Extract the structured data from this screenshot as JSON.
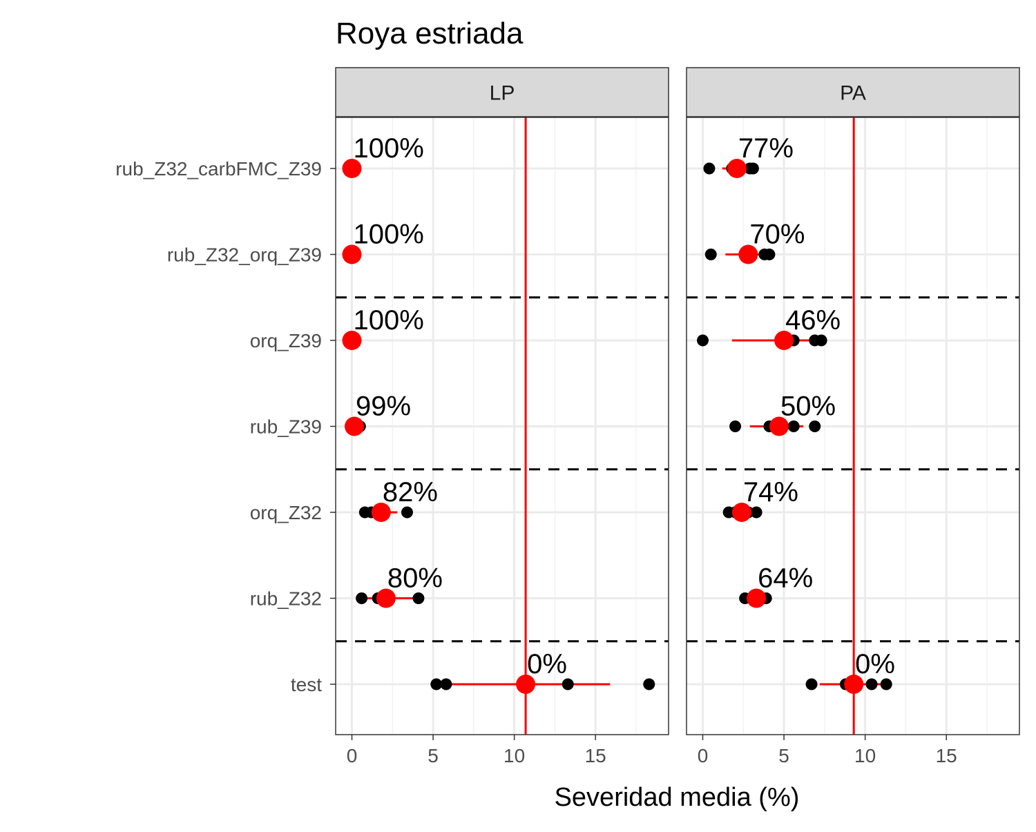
{
  "chart_data": {
    "type": "scatter",
    "title": "Roya estriada",
    "xlabel": "Severidad media (%)",
    "ylabel": "",
    "xlim": [
      -1,
      19.5
    ],
    "xticks": [
      0,
      5,
      10,
      15
    ],
    "grid": true,
    "legend": "none",
    "categories": [
      "rub_Z32_carbFMC_Z39",
      "rub_Z32_orq_Z39",
      "orq_Z39",
      "rub_Z39",
      "orq_Z32",
      "rub_Z32",
      "test"
    ],
    "group_separators_after": [
      "rub_Z32_orq_Z39",
      "rub_Z39",
      "rub_Z32"
    ],
    "colors": {
      "mean": "#ff0000",
      "points": "#000000",
      "reference_line": "#ff0000",
      "separator": "#000000"
    },
    "panels": [
      {
        "name": "LP",
        "reference": 10.7,
        "rows": [
          {
            "category": "rub_Z32_carbFMC_Z39",
            "label": "100%",
            "mean": 0.0,
            "ci": [
              0.0,
              0.0
            ],
            "points": [
              0.0,
              0.0,
              0.0,
              0.0
            ]
          },
          {
            "category": "rub_Z32_orq_Z39",
            "label": "100%",
            "mean": 0.0,
            "ci": [
              0.0,
              0.0
            ],
            "points": [
              0.0,
              0.0,
              0.0,
              0.0
            ]
          },
          {
            "category": "orq_Z39",
            "label": "100%",
            "mean": 0.0,
            "ci": [
              0.0,
              0.0
            ],
            "points": [
              0.0,
              0.0,
              0.0,
              0.0
            ]
          },
          {
            "category": "rub_Z39",
            "label": "99%",
            "mean": 0.15,
            "ci": [
              0.0,
              0.4
            ],
            "points": [
              0.0,
              0.0,
              0.1,
              0.5
            ]
          },
          {
            "category": "orq_Z32",
            "label": "82%",
            "mean": 1.8,
            "ci": [
              1.0,
              2.8
            ],
            "points": [
              0.8,
              1.2,
              1.8,
              3.4
            ]
          },
          {
            "category": "rub_Z32",
            "label": "80%",
            "mean": 2.1,
            "ci": [
              0.6,
              4.2
            ],
            "points": [
              0.6,
              1.6,
              2.2,
              4.1
            ]
          },
          {
            "category": "test",
            "label": "0%",
            "mean": 10.7,
            "ci": [
              5.5,
              15.9
            ],
            "points": [
              5.2,
              5.8,
              13.3,
              18.3
            ]
          }
        ]
      },
      {
        "name": "PA",
        "reference": 9.3,
        "rows": [
          {
            "category": "rub_Z32_carbFMC_Z39",
            "label": "77%",
            "mean": 2.1,
            "ci": [
              1.2,
              3.1
            ],
            "points": [
              0.4,
              1.8,
              2.9,
              3.1
            ]
          },
          {
            "category": "rub_Z32_orq_Z39",
            "label": "70%",
            "mean": 2.8,
            "ci": [
              1.4,
              4.0
            ],
            "points": [
              0.5,
              2.6,
              3.8,
              4.1
            ]
          },
          {
            "category": "orq_Z39",
            "label": "46%",
            "mean": 5.0,
            "ci": [
              1.8,
              7.2
            ],
            "points": [
              0.0,
              5.6,
              6.9,
              7.3
            ]
          },
          {
            "category": "rub_Z39",
            "label": "50%",
            "mean": 4.7,
            "ci": [
              2.9,
              6.2
            ],
            "points": [
              2.0,
              4.1,
              5.6,
              6.9
            ]
          },
          {
            "category": "orq_Z32",
            "label": "74%",
            "mean": 2.4,
            "ci": [
              1.7,
              3.2
            ],
            "points": [
              1.6,
              2.0,
              2.8,
              3.3
            ]
          },
          {
            "category": "rub_Z32",
            "label": "64%",
            "mean": 3.3,
            "ci": [
              2.7,
              3.9
            ],
            "points": [
              2.6,
              3.1,
              3.5,
              3.9
            ]
          },
          {
            "category": "test",
            "label": "0%",
            "mean": 9.3,
            "ci": [
              7.2,
              11.2
            ],
            "points": [
              6.7,
              8.8,
              10.4,
              11.3
            ]
          }
        ]
      }
    ]
  }
}
